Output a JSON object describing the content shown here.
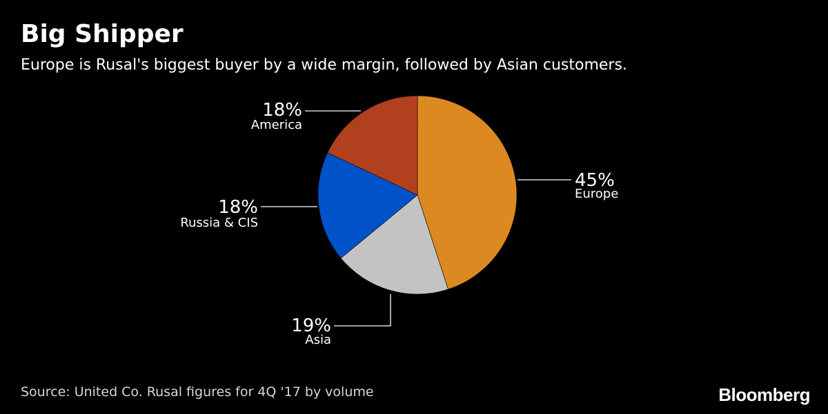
{
  "header": {
    "title": "Big Shipper",
    "subtitle": "Europe is Rusal's biggest buyer by a wide margin, followed by Asian customers."
  },
  "footer": {
    "source": "Source: United Co. Rusal figures for 4Q '17 by volume",
    "logo": "Bloomberg"
  },
  "chart_data": {
    "type": "pie",
    "unit": "%",
    "slices": [
      {
        "label": "Europe",
        "value": 45,
        "color": "#dd8922"
      },
      {
        "label": "Asia",
        "value": 19,
        "color": "#c3c3c3"
      },
      {
        "label": "Russia & CIS",
        "value": 18,
        "color": "#0052c8"
      },
      {
        "label": "America",
        "value": 18,
        "color": "#b0401e"
      }
    ]
  }
}
